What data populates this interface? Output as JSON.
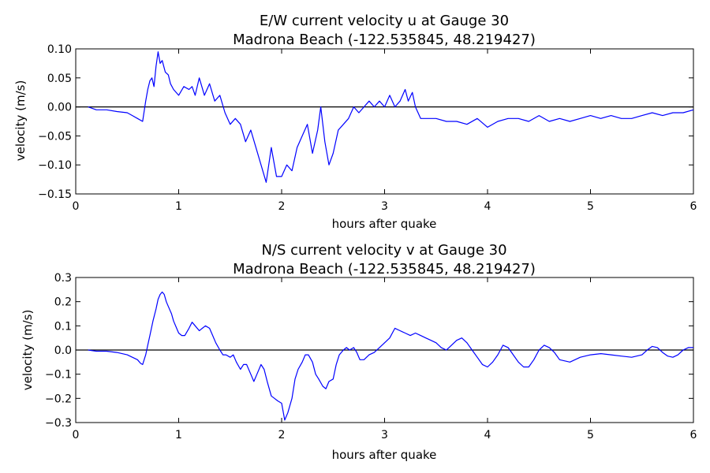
{
  "chart_data": [
    {
      "type": "line",
      "title": "E/W current velocity u at Gauge 30",
      "subtitle": "Madrona Beach  (-122.535845, 48.219427)",
      "xlabel": "hours after quake",
      "ylabel": "velocity (m/s)",
      "xlim": [
        0,
        6
      ],
      "ylim": [
        -0.15,
        0.1
      ],
      "xticks": [
        0,
        1,
        2,
        3,
        4,
        5,
        6
      ],
      "xtick_labels": [
        "0",
        "1",
        "2",
        "3",
        "4",
        "5",
        "6"
      ],
      "yticks": [
        -0.15,
        -0.1,
        -0.05,
        0.0,
        0.05,
        0.1
      ],
      "ytick_labels": [
        "−0.15",
        "−0.10",
        "−0.05",
        "0.00",
        "0.05",
        "0.10"
      ],
      "grid": false,
      "reference_line": 0,
      "colors": {
        "series": "#0000ff",
        "reference": "#000000"
      },
      "series": [
        {
          "x": [
            0.12,
            0.2,
            0.3,
            0.4,
            0.5,
            0.55,
            0.6,
            0.65,
            0.68,
            0.7,
            0.72,
            0.74,
            0.76,
            0.78,
            0.8,
            0.82,
            0.84,
            0.87,
            0.9,
            0.92,
            0.95,
            1.0,
            1.05,
            1.1,
            1.13,
            1.16,
            1.2,
            1.25,
            1.3,
            1.35,
            1.4,
            1.45,
            1.5,
            1.55,
            1.6,
            1.65,
            1.7,
            1.75,
            1.8,
            1.85,
            1.9,
            1.95,
            2.0,
            2.05,
            2.1,
            2.15,
            2.2,
            2.25,
            2.3,
            2.35,
            2.38,
            2.42,
            2.46,
            2.5,
            2.55,
            2.6,
            2.65,
            2.7,
            2.75,
            2.8,
            2.85,
            2.9,
            2.95,
            3.0,
            3.05,
            3.1,
            3.15,
            3.2,
            3.23,
            3.27,
            3.3,
            3.35,
            3.4,
            3.5,
            3.6,
            3.7,
            3.8,
            3.9,
            4.0,
            4.1,
            4.2,
            4.3,
            4.4,
            4.5,
            4.6,
            4.7,
            4.8,
            4.9,
            5.0,
            5.1,
            5.2,
            5.3,
            5.4,
            5.5,
            5.6,
            5.7,
            5.8,
            5.9,
            6.0
          ],
          "values": [
            0.0,
            -0.005,
            -0.005,
            -0.008,
            -0.01,
            -0.015,
            -0.02,
            -0.025,
            0.01,
            0.03,
            0.045,
            0.05,
            0.035,
            0.07,
            0.095,
            0.075,
            0.08,
            0.06,
            0.055,
            0.04,
            0.03,
            0.02,
            0.035,
            0.03,
            0.035,
            0.02,
            0.05,
            0.02,
            0.04,
            0.01,
            0.02,
            -0.01,
            -0.03,
            -0.02,
            -0.03,
            -0.06,
            -0.04,
            -0.07,
            -0.1,
            -0.13,
            -0.07,
            -0.12,
            -0.12,
            -0.1,
            -0.11,
            -0.07,
            -0.05,
            -0.03,
            -0.08,
            -0.04,
            0.0,
            -0.06,
            -0.1,
            -0.08,
            -0.04,
            -0.03,
            -0.02,
            0.0,
            -0.01,
            0.0,
            0.01,
            0.0,
            0.01,
            0.0,
            0.02,
            0.0,
            0.01,
            0.03,
            0.01,
            0.025,
            0.0,
            -0.02,
            -0.02,
            -0.02,
            -0.025,
            -0.025,
            -0.03,
            -0.02,
            -0.035,
            -0.025,
            -0.02,
            -0.02,
            -0.025,
            -0.015,
            -0.025,
            -0.02,
            -0.025,
            -0.02,
            -0.015,
            -0.02,
            -0.015,
            -0.02,
            -0.02,
            -0.015,
            -0.01,
            -0.015,
            -0.01,
            -0.01,
            -0.005
          ]
        }
      ]
    },
    {
      "type": "line",
      "title": "N/S current velocity v at Gauge 30",
      "subtitle": "Madrona Beach  (-122.535845, 48.219427)",
      "xlabel": "hours after quake",
      "ylabel": "velocity (m/s)",
      "xlim": [
        0,
        6
      ],
      "ylim": [
        -0.3,
        0.3
      ],
      "xticks": [
        0,
        1,
        2,
        3,
        4,
        5,
        6
      ],
      "xtick_labels": [
        "0",
        "1",
        "2",
        "3",
        "4",
        "5",
        "6"
      ],
      "yticks": [
        -0.3,
        -0.2,
        -0.1,
        0.0,
        0.1,
        0.2,
        0.3
      ],
      "ytick_labels": [
        "−0.3",
        "−0.2",
        "−0.1",
        "0.0",
        "0.1",
        "0.2",
        "0.3"
      ],
      "grid": false,
      "reference_line": 0,
      "colors": {
        "series": "#0000ff",
        "reference": "#000000"
      },
      "series": [
        {
          "x": [
            0.12,
            0.2,
            0.3,
            0.4,
            0.5,
            0.55,
            0.6,
            0.63,
            0.65,
            0.68,
            0.7,
            0.72,
            0.75,
            0.78,
            0.8,
            0.82,
            0.84,
            0.86,
            0.88,
            0.9,
            0.93,
            0.95,
            0.98,
            1.0,
            1.03,
            1.06,
            1.1,
            1.13,
            1.16,
            1.2,
            1.23,
            1.26,
            1.3,
            1.33,
            1.36,
            1.4,
            1.43,
            1.46,
            1.5,
            1.53,
            1.56,
            1.6,
            1.63,
            1.66,
            1.7,
            1.73,
            1.76,
            1.8,
            1.83,
            1.86,
            1.9,
            1.93,
            1.96,
            2.0,
            2.03,
            2.06,
            2.1,
            2.13,
            2.16,
            2.2,
            2.23,
            2.26,
            2.3,
            2.33,
            2.36,
            2.4,
            2.43,
            2.46,
            2.5,
            2.53,
            2.56,
            2.6,
            2.63,
            2.66,
            2.7,
            2.73,
            2.76,
            2.8,
            2.85,
            2.9,
            2.95,
            3.0,
            3.05,
            3.1,
            3.15,
            3.2,
            3.25,
            3.3,
            3.35,
            3.4,
            3.45,
            3.5,
            3.55,
            3.6,
            3.65,
            3.7,
            3.75,
            3.8,
            3.85,
            3.9,
            3.95,
            4.0,
            4.05,
            4.1,
            4.15,
            4.2,
            4.25,
            4.3,
            4.35,
            4.4,
            4.45,
            4.5,
            4.55,
            4.6,
            4.65,
            4.7,
            4.8,
            4.9,
            5.0,
            5.1,
            5.2,
            5.3,
            5.4,
            5.5,
            5.55,
            5.6,
            5.65,
            5.7,
            5.75,
            5.8,
            5.85,
            5.9,
            5.95,
            6.0
          ],
          "values": [
            0.0,
            -0.005,
            -0.005,
            -0.01,
            -0.02,
            -0.03,
            -0.04,
            -0.055,
            -0.06,
            -0.02,
            0.02,
            0.06,
            0.12,
            0.17,
            0.21,
            0.23,
            0.24,
            0.23,
            0.2,
            0.18,
            0.15,
            0.12,
            0.09,
            0.07,
            0.06,
            0.06,
            0.09,
            0.115,
            0.1,
            0.08,
            0.09,
            0.1,
            0.09,
            0.06,
            0.03,
            0.0,
            -0.02,
            -0.02,
            -0.03,
            -0.02,
            -0.05,
            -0.08,
            -0.06,
            -0.06,
            -0.1,
            -0.13,
            -0.1,
            -0.06,
            -0.08,
            -0.13,
            -0.19,
            -0.2,
            -0.21,
            -0.22,
            -0.29,
            -0.26,
            -0.2,
            -0.12,
            -0.08,
            -0.05,
            -0.02,
            -0.02,
            -0.05,
            -0.1,
            -0.12,
            -0.15,
            -0.16,
            -0.13,
            -0.12,
            -0.06,
            -0.02,
            0.0,
            0.01,
            0.0,
            0.01,
            -0.01,
            -0.04,
            -0.04,
            -0.02,
            -0.01,
            0.01,
            0.03,
            0.05,
            0.09,
            0.08,
            0.07,
            0.06,
            0.07,
            0.06,
            0.05,
            0.04,
            0.03,
            0.01,
            0.0,
            0.02,
            0.04,
            0.05,
            0.03,
            0.0,
            -0.03,
            -0.06,
            -0.07,
            -0.05,
            -0.02,
            0.02,
            0.01,
            -0.02,
            -0.05,
            -0.07,
            -0.07,
            -0.04,
            0.0,
            0.02,
            0.01,
            -0.01,
            -0.04,
            -0.05,
            -0.03,
            -0.02,
            -0.015,
            -0.02,
            -0.025,
            -0.03,
            -0.02,
            0.0,
            0.015,
            0.01,
            -0.01,
            -0.025,
            -0.03,
            -0.02,
            0.0,
            0.01,
            0.01
          ]
        }
      ]
    }
  ]
}
